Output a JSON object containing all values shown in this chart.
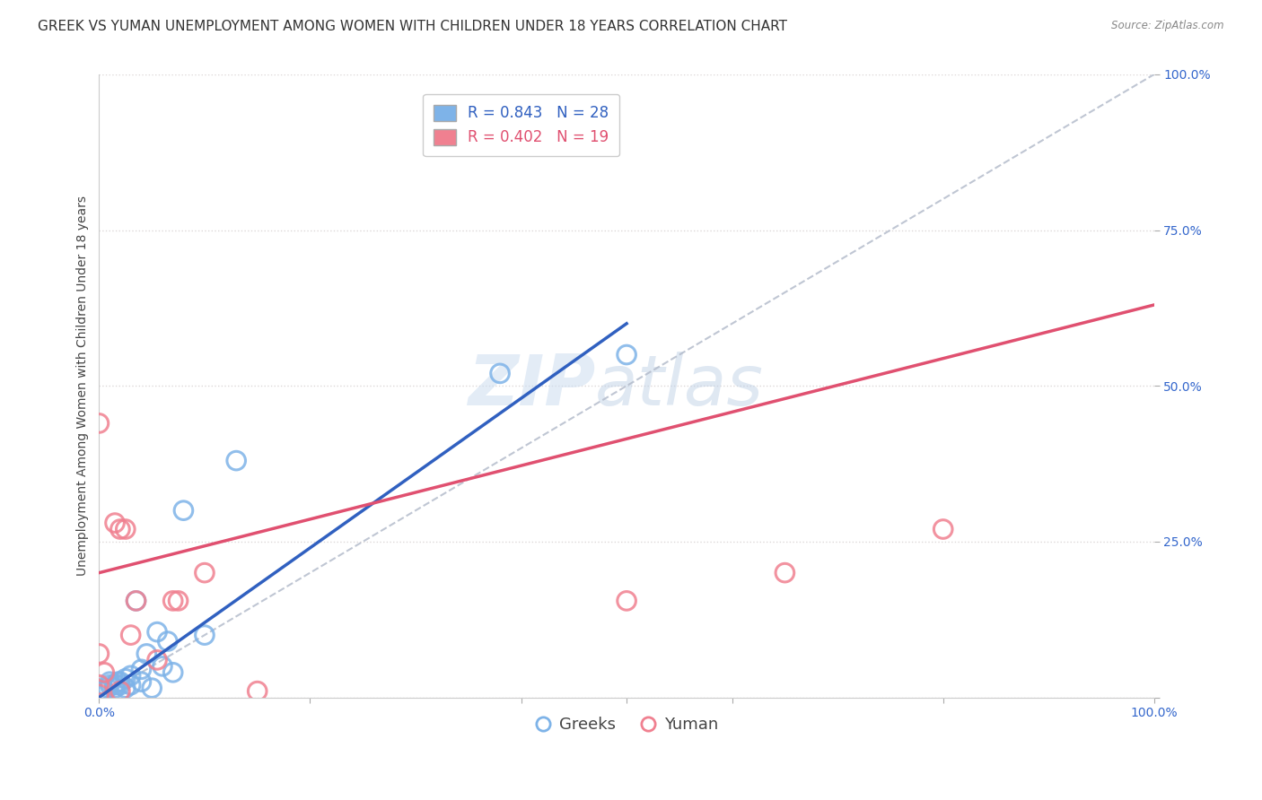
{
  "title": "GREEK VS YUMAN UNEMPLOYMENT AMONG WOMEN WITH CHILDREN UNDER 18 YEARS CORRELATION CHART",
  "source": "Source: ZipAtlas.com",
  "ylabel": "Unemployment Among Women with Children Under 18 years",
  "xlim": [
    0.0,
    1.0
  ],
  "ylim": [
    0.0,
    1.0
  ],
  "yticks": [
    0.0,
    0.25,
    0.5,
    0.75,
    1.0
  ],
  "ytick_labels": [
    "",
    "25.0%",
    "50.0%",
    "75.0%",
    "100.0%"
  ],
  "greek_R": 0.843,
  "greek_N": 28,
  "yuman_R": 0.402,
  "yuman_N": 19,
  "greek_color": "#7eb3e8",
  "yuman_color": "#f08090",
  "greek_line_color": "#3060c0",
  "yuman_line_color": "#e05070",
  "diagonal_color": "#b0b8c8",
  "watermark_zip": "ZIP",
  "watermark_atlas": "atlas",
  "greek_points_x": [
    0.0,
    0.005,
    0.008,
    0.01,
    0.01,
    0.015,
    0.015,
    0.018,
    0.02,
    0.02,
    0.025,
    0.025,
    0.03,
    0.03,
    0.035,
    0.04,
    0.04,
    0.045,
    0.05,
    0.055,
    0.06,
    0.065,
    0.07,
    0.08,
    0.1,
    0.13,
    0.38,
    0.5
  ],
  "greek_points_y": [
    0.01,
    0.01,
    0.015,
    0.02,
    0.025,
    0.015,
    0.02,
    0.025,
    0.02,
    0.025,
    0.015,
    0.03,
    0.02,
    0.035,
    0.155,
    0.025,
    0.045,
    0.07,
    0.015,
    0.105,
    0.05,
    0.09,
    0.04,
    0.3,
    0.1,
    0.38,
    0.52,
    0.55
  ],
  "yuman_points_x": [
    0.0,
    0.0,
    0.005,
    0.015,
    0.02,
    0.025,
    0.03,
    0.035,
    0.055,
    0.07,
    0.075,
    0.1,
    0.15,
    0.5,
    0.65,
    0.8,
    0.0,
    0.0,
    0.02
  ],
  "yuman_points_y": [
    0.07,
    0.44,
    0.04,
    0.28,
    0.27,
    0.27,
    0.1,
    0.155,
    0.06,
    0.155,
    0.155,
    0.2,
    0.01,
    0.155,
    0.2,
    0.27,
    0.02,
    0.005,
    0.01
  ],
  "legend_entries": [
    "Greeks",
    "Yuman"
  ],
  "background_color": "#ffffff",
  "grid_color": "#ddd8d8",
  "title_fontsize": 11,
  "axis_label_fontsize": 10,
  "tick_fontsize": 10,
  "legend_fontsize": 12,
  "greek_line_x": [
    0.0,
    0.5
  ],
  "greek_line_y": [
    0.0,
    0.6
  ],
  "yuman_line_x": [
    0.0,
    1.0
  ],
  "yuman_line_y": [
    0.2,
    0.63
  ]
}
